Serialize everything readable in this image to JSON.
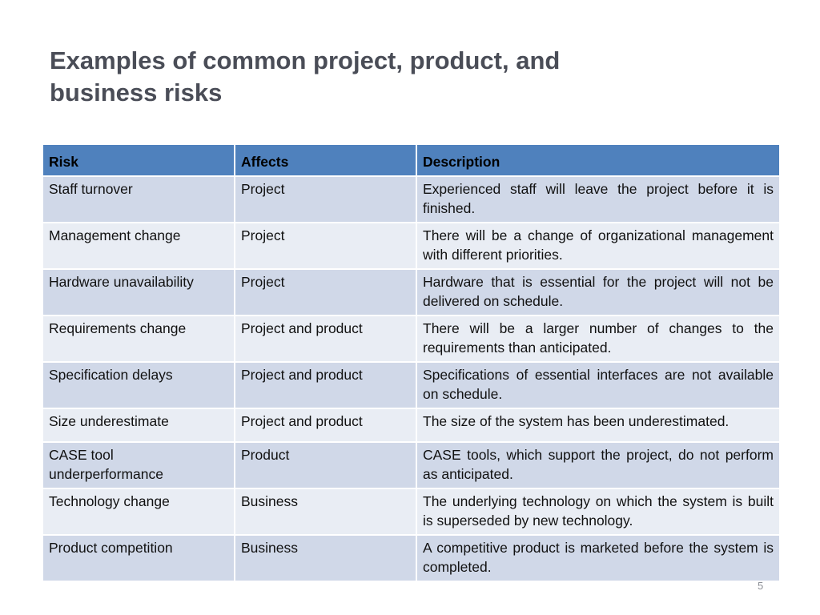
{
  "slide": {
    "title": "Examples of common project, product, and business risks",
    "page_number": "5"
  },
  "table": {
    "headers": [
      "Risk",
      "Affects",
      "Description"
    ],
    "rows": [
      {
        "risk": "Staff turnover",
        "affects": "Project",
        "description": "Experienced staff will leave the project before it is finished."
      },
      {
        "risk": "Management change",
        "affects": "Project",
        "description": "There will be a change of organizational management with different priorities."
      },
      {
        "risk": "Hardware unavailability",
        "affects": "Project",
        "description": "Hardware that is essential for the project will not be delivered on schedule."
      },
      {
        "risk": "Requirements change",
        "affects": "Project and product",
        "description": "There will be a larger number of changes to the requirements than anticipated."
      },
      {
        "risk": "Specification delays",
        "affects": "Project and product",
        "description": "Specifications of essential interfaces are not available on schedule."
      },
      {
        "risk": "Size underestimate",
        "affects": "Project and product",
        "description": "The size of the system has been underestimated."
      },
      {
        "risk": "CASE tool underperformance",
        "affects": "Product",
        "description": "CASE tools, which support the project, do not perform as anticipated."
      },
      {
        "risk": "Technology change",
        "affects": "Business",
        "description": "The underlying technology on which the system is built is superseded by new technology."
      },
      {
        "risk": "Product competition",
        "affects": "Business",
        "description": "A competitive product is marketed before the system is completed."
      }
    ]
  }
}
